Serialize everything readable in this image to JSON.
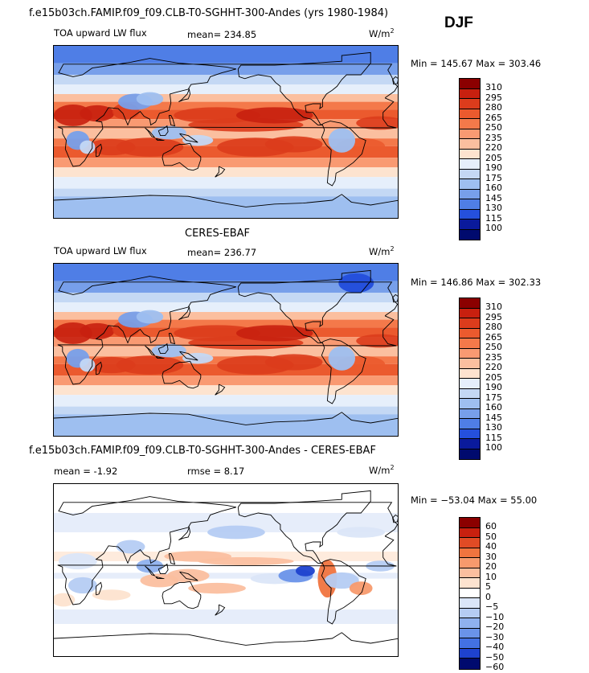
{
  "season": "DJF",
  "units": "W/m",
  "units_sup": "2",
  "panels": [
    {
      "title": "f.e15b03ch.FAMIP.f09_f09.CLB-T0-SGHHT-300-Andes (yrs 1980-1984)",
      "left_label": "TOA upward LW flux",
      "stat1": "mean=  234.85",
      "stat2": "",
      "minmax": "Min = 145.67 Max = 303.46",
      "colorbar_ticks": [
        "310",
        "295",
        "280",
        "265",
        "250",
        "235",
        "220",
        "205",
        "190",
        "175",
        "160",
        "145",
        "130",
        "115",
        "100"
      ]
    },
    {
      "title": "CERES-EBAF",
      "left_label": "TOA upward LW flux",
      "stat1": "mean=  236.77",
      "stat2": "",
      "minmax": "Min = 146.86 Max = 302.33",
      "colorbar_ticks": [
        "310",
        "295",
        "280",
        "265",
        "250",
        "235",
        "220",
        "205",
        "190",
        "175",
        "160",
        "145",
        "130",
        "115",
        "100"
      ]
    },
    {
      "title": "f.e15b03ch.FAMIP.f09_f09.CLB-T0-SGHHT-300-Andes - CERES-EBAF",
      "left_label": "mean =   -1.92",
      "stat1": "rmse =   8.17",
      "stat2": "",
      "minmax": "Min = −53.04 Max =  55.00",
      "colorbar_ticks": [
        "60",
        "50",
        "40",
        "30",
        "20",
        "10",
        "5",
        "0",
        "−5",
        "−10",
        "−20",
        "−30",
        "−40",
        "−50",
        "−60"
      ]
    }
  ],
  "chart_data": [
    {
      "type": "heatmap",
      "title": "f.e15b03ch.FAMIP.f09_f09.CLB-T0-SGHHT-300-Andes (yrs 1980-1984)",
      "variable": "TOA upward LW flux",
      "season": "DJF",
      "units": "W/m2",
      "mean": 234.85,
      "min": 145.67,
      "max": 303.46,
      "contour_levels": [
        100,
        115,
        130,
        145,
        160,
        175,
        190,
        205,
        220,
        235,
        250,
        265,
        280,
        295,
        310
      ]
    },
    {
      "type": "heatmap",
      "title": "CERES-EBAF",
      "variable": "TOA upward LW flux",
      "season": "DJF",
      "units": "W/m2",
      "mean": 236.77,
      "min": 146.86,
      "max": 302.33,
      "contour_levels": [
        100,
        115,
        130,
        145,
        160,
        175,
        190,
        205,
        220,
        235,
        250,
        265,
        280,
        295,
        310
      ]
    },
    {
      "type": "heatmap",
      "title": "f.e15b03ch.FAMIP.f09_f09.CLB-T0-SGHHT-300-Andes - CERES-EBAF",
      "variable": "TOA upward LW flux difference",
      "season": "DJF",
      "units": "W/m2",
      "mean": -1.92,
      "rmse": 8.17,
      "min": -53.04,
      "max": 55.0,
      "contour_levels": [
        -60,
        -50,
        -40,
        -30,
        -20,
        -10,
        -5,
        0,
        5,
        10,
        20,
        30,
        40,
        50,
        60
      ]
    }
  ],
  "colors": {
    "absolute_scale": [
      "#8b0000",
      "#c8200f",
      "#dc3c1c",
      "#eb5a2e",
      "#f4794a",
      "#f99a72",
      "#fbbf9f",
      "#fde3cf",
      "#e6effb",
      "#c4d8f4",
      "#9ebff0",
      "#779fea",
      "#4f7ee6",
      "#2550dc",
      "#0a1a9c",
      "#000a6e"
    ],
    "diff_scale": [
      "#8b0000",
      "#c8200f",
      "#e14b25",
      "#f0743f",
      "#f79a6d",
      "#fbbf9f",
      "#fde3cf",
      "#ffffff",
      "#dbe6f8",
      "#b5ccf3",
      "#8fb1ee",
      "#6a93e9",
      "#4371e3",
      "#1e42cf",
      "#000a6e"
    ],
    "land_line": "#000000"
  }
}
